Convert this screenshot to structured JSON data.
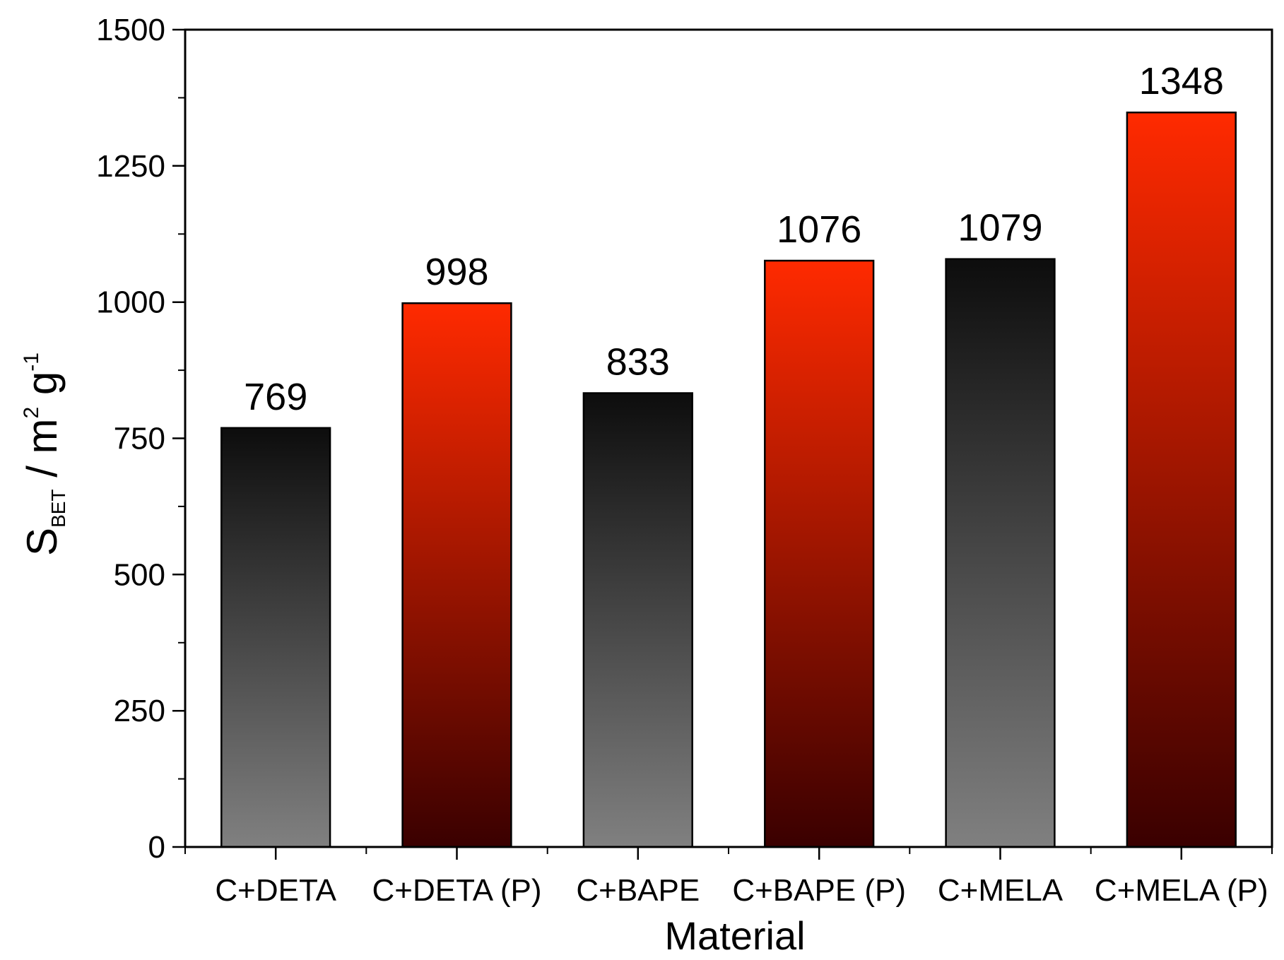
{
  "chart_data": {
    "type": "bar",
    "categories": [
      "C+DETA",
      "C+DETA (P)",
      "C+BAPE",
      "C+BAPE (P)",
      "C+MELA",
      "C+MELA (P)"
    ],
    "values": [
      769,
      998,
      833,
      1076,
      1079,
      1348
    ],
    "value_labels": [
      "769",
      "998",
      "833",
      "1076",
      "1079",
      "1348"
    ],
    "bar_styles": [
      "gray",
      "red",
      "gray",
      "red",
      "gray",
      "red"
    ],
    "title": "",
    "xlabel": "Material",
    "ylabel": {
      "main": "S",
      "subscript": "BET",
      "unit_prefix": " / m",
      "unit_sup1": "2",
      "unit_mid": " g",
      "unit_sup2": "-1"
    },
    "ylim": [
      0,
      1500
    ],
    "yticks": [
      0,
      250,
      500,
      750,
      1000,
      1250,
      1500
    ],
    "ytick_labels": [
      "0",
      "250",
      "500",
      "750",
      "1000",
      "1250",
      "1500"
    ],
    "grid": false,
    "legend": "none",
    "colors": {
      "gray_top": "#0d0d0d",
      "gray_bottom": "#808080",
      "red_top": "#ff2a00",
      "red_bottom": "#3a0000",
      "axis": "#000000"
    }
  }
}
